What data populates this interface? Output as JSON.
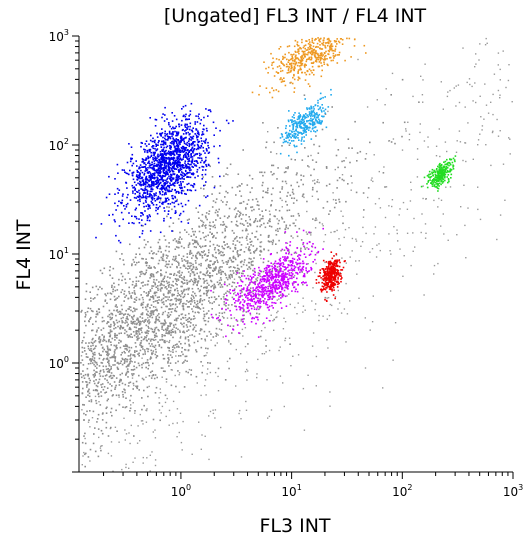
{
  "chart_data": {
    "type": "scatter",
    "title": "[Ungated] FL3 INT / FL4 INT",
    "xlabel": "FL3 INT",
    "ylabel": "FL4 INT",
    "x_scale": "log",
    "y_scale": "log",
    "xlim": [
      0.12,
      1000
    ],
    "ylim": [
      0.1,
      1000
    ],
    "grid": false,
    "x_ticks": [
      {
        "value": 1,
        "base": "10",
        "exp": "0"
      },
      {
        "value": 10,
        "base": "10",
        "exp": "1"
      },
      {
        "value": 100,
        "base": "10",
        "exp": "2"
      },
      {
        "value": 1000,
        "base": "10",
        "exp": "3"
      }
    ],
    "y_ticks": [
      {
        "value": 1,
        "base": "10",
        "exp": "0"
      },
      {
        "value": 10,
        "base": "10",
        "exp": "1"
      },
      {
        "value": 100,
        "base": "10",
        "exp": "2"
      },
      {
        "value": 1000,
        "base": "10",
        "exp": "3"
      }
    ],
    "series": [
      {
        "color": "#8e8e8e",
        "center": [
          0.55,
          2.8
        ],
        "spread_log": [
          0.75,
          0.35
        ],
        "points": 3000
      },
      {
        "color": "#0000ee",
        "center": [
          0.75,
          65
        ],
        "spread_log": [
          0.18,
          0.18
        ],
        "points": 1500
      },
      {
        "color": "#cc00ff",
        "center": [
          6.5,
          5.5
        ],
        "spread_log": [
          0.17,
          0.12
        ],
        "points": 700
      },
      {
        "color": "#ee0000",
        "center": [
          22,
          6.5
        ],
        "spread_log": [
          0.045,
          0.07
        ],
        "points": 350
      },
      {
        "color": "#22dd22",
        "center": [
          220,
          55
        ],
        "spread_log": [
          0.06,
          0.05
        ],
        "points": 250
      },
      {
        "color": "#22aaee",
        "center": [
          13,
          160
        ],
        "spread_log": [
          0.1,
          0.08
        ],
        "points": 300
      },
      {
        "color": "#ee9922",
        "center": [
          15,
          700
        ],
        "spread_log": [
          0.18,
          0.1
        ],
        "points": 500
      }
    ]
  }
}
